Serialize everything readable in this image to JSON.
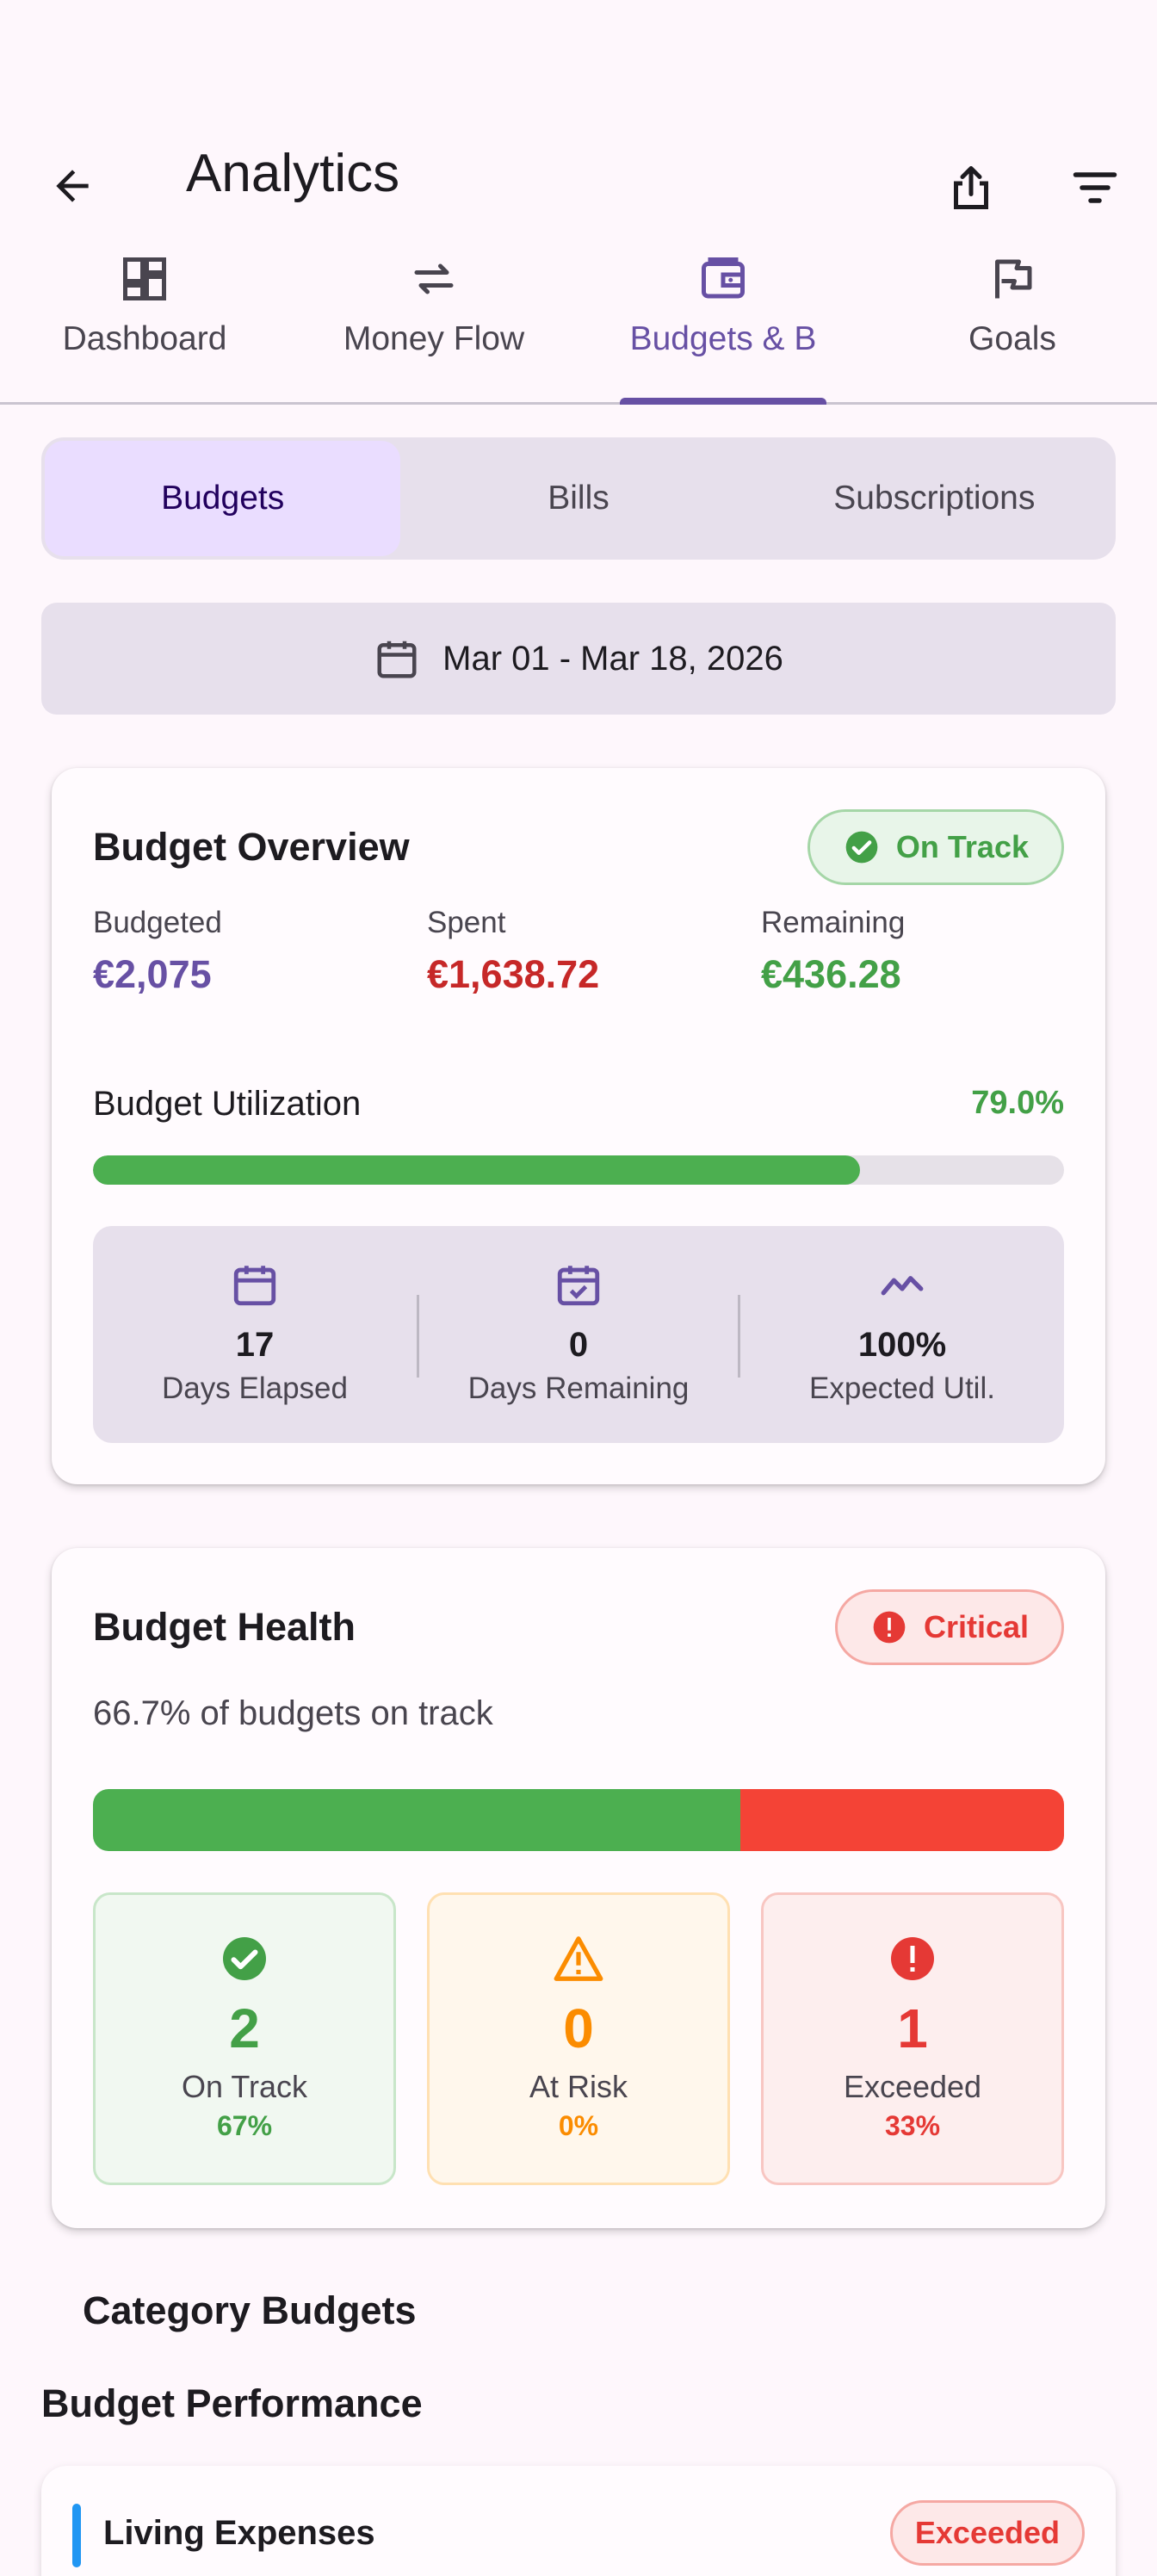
{
  "appbar": {
    "title": "Analytics",
    "back_icon": "arrow-back-icon",
    "share_icon": "share-icon",
    "filter_icon": "filter-icon"
  },
  "tabs": [
    {
      "label": "Dashboard",
      "icon": "dashboard-icon",
      "active": false
    },
    {
      "label": "Money Flow",
      "icon": "swap-icon",
      "active": false
    },
    {
      "label": "Budgets & B",
      "icon": "wallet-icon",
      "active": true
    },
    {
      "label": "Goals",
      "icon": "flag-icon",
      "active": false
    }
  ],
  "segments": [
    {
      "label": "Budgets",
      "selected": true
    },
    {
      "label": "Bills",
      "selected": false
    },
    {
      "label": "Subscriptions",
      "selected": false
    }
  ],
  "date_range": {
    "text": "Mar 01 - Mar 18, 2026",
    "icon": "calendar-icon"
  },
  "overview": {
    "title": "Budget Overview",
    "status": "On Track",
    "budgeted_label": "Budgeted",
    "budgeted_value": "€2,075",
    "spent_label": "Spent",
    "spent_value": "€1,638.72",
    "remaining_label": "Remaining",
    "remaining_value": "€436.28",
    "utilization_label": "Budget Utilization",
    "utilization_text": "79.0%",
    "utilization_fraction": 0.79,
    "days_elapsed_value": "17",
    "days_elapsed_label": "Days Elapsed",
    "days_remaining_value": "0",
    "days_remaining_label": "Days Remaining",
    "expected_value": "100%",
    "expected_label": "Expected Util."
  },
  "health": {
    "title": "Budget Health",
    "status": "Critical",
    "subtitle": "66.7% of budgets on track",
    "on_track_fraction": 0.667,
    "on_track_count": "2",
    "on_track_label": "On Track",
    "on_track_pct": "67%",
    "at_risk_count": "0",
    "at_risk_label": "At Risk",
    "at_risk_pct": "0%",
    "exceeded_count": "1",
    "exceeded_label": "Exceeded",
    "exceeded_pct": "33%"
  },
  "category_budgets_title": "Category Budgets",
  "performance": {
    "title": "Budget Performance",
    "items": [
      {
        "name": "Living Expenses",
        "status": "Exceeded"
      }
    ]
  },
  "colors": {
    "primary": "#6750a4",
    "success": "#4caf50",
    "danger": "#f44336",
    "warning": "#fb8c00",
    "spent_text": "#c62828"
  }
}
